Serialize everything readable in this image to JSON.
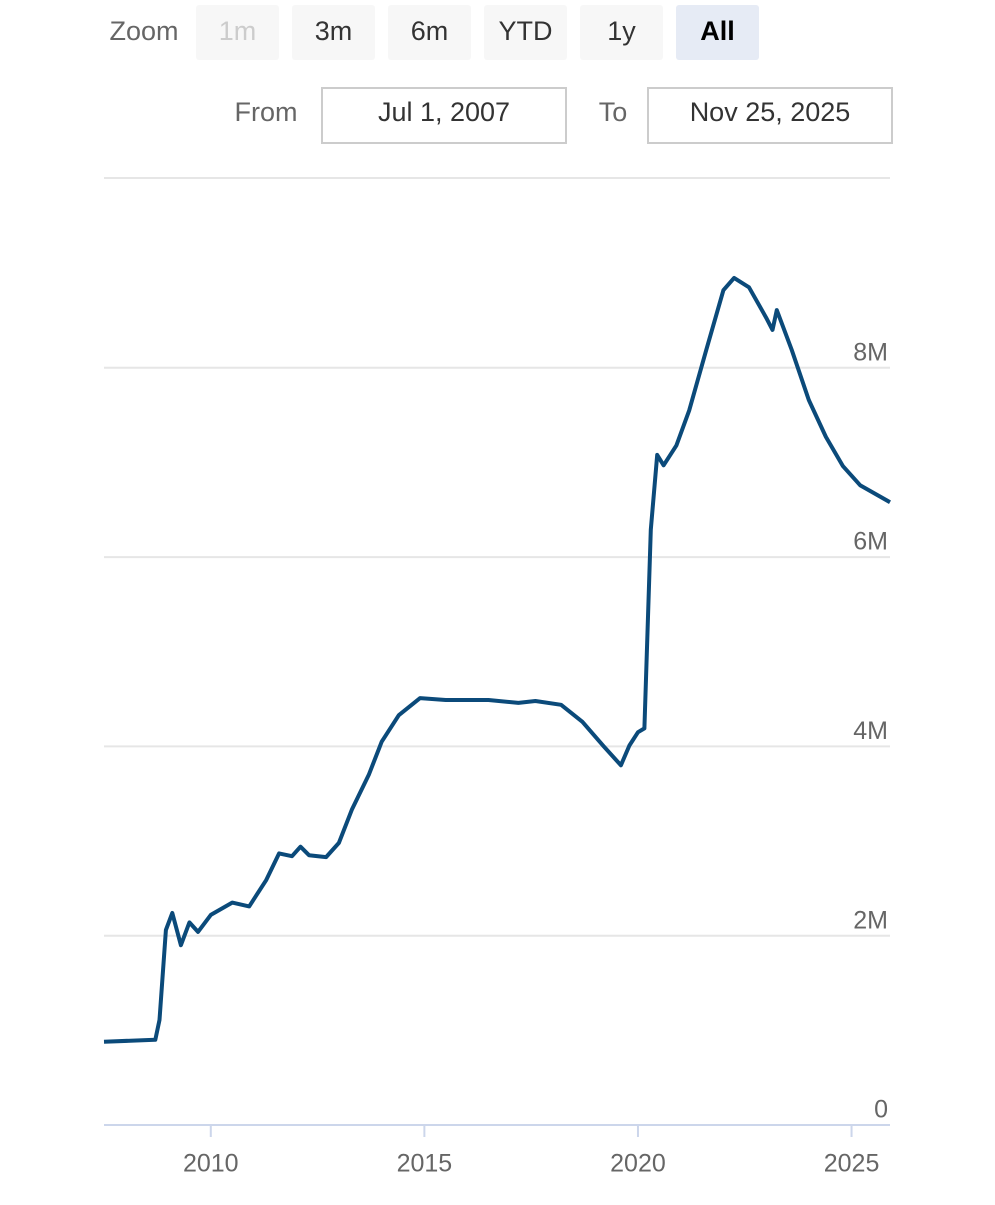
{
  "range_selector": {
    "label": "Zoom",
    "buttons": [
      "1m",
      "3m",
      "6m",
      "YTD",
      "1y",
      "All"
    ],
    "selected": 5,
    "disabled": [
      0
    ],
    "from_label": "From",
    "from": "Jul 1, 2007",
    "to_label": "To",
    "to": "Nov 25, 2025"
  },
  "chart_data": {
    "type": "line",
    "color": "#0b4a7a",
    "x": [
      2007.5,
      2008.7,
      2008.8,
      2008.95,
      2009.1,
      2009.3,
      2009.5,
      2009.7,
      2010.0,
      2010.5,
      2010.9,
      2011.3,
      2011.6,
      2011.9,
      2012.1,
      2012.3,
      2012.7,
      2013.0,
      2013.3,
      2013.7,
      2014.0,
      2014.4,
      2014.9,
      2015.5,
      2016.5,
      2017.2,
      2017.6,
      2018.2,
      2018.7,
      2019.2,
      2019.6,
      2019.8,
      2020.0,
      2020.15,
      2020.3,
      2020.45,
      2020.6,
      2020.9,
      2021.2,
      2021.6,
      2022.0,
      2022.25,
      2022.6,
      2023.0,
      2023.15,
      2023.25,
      2023.6,
      2024.0,
      2024.4,
      2024.8,
      2025.2,
      2025.9
    ],
    "values": [
      880000,
      900000,
      1110000,
      2060000,
      2240000,
      1900000,
      2140000,
      2040000,
      2220000,
      2350000,
      2310000,
      2590000,
      2870000,
      2840000,
      2940000,
      2850000,
      2830000,
      2980000,
      3330000,
      3700000,
      4050000,
      4330000,
      4510000,
      4490000,
      4490000,
      4460000,
      4480000,
      4440000,
      4260000,
      4000000,
      3800000,
      4010000,
      4150000,
      4190000,
      6290000,
      7080000,
      6970000,
      7180000,
      7550000,
      8190000,
      8820000,
      8950000,
      8850000,
      8530000,
      8400000,
      8610000,
      8190000,
      7660000,
      7270000,
      6960000,
      6760000,
      6580000
    ],
    "xlim": [
      2007.5,
      2025.9
    ],
    "xticks": [
      2010,
      2015,
      2020,
      2025
    ],
    "ylim": [
      0,
      10000000
    ],
    "yticks": [
      0,
      {
        "value": 2000000,
        "label": "2M"
      },
      {
        "value": 4000000,
        "label": "4M"
      },
      {
        "value": 6000000,
        "label": "6M"
      },
      {
        "value": 8000000,
        "label": "8M"
      }
    ],
    "grid": true
  }
}
